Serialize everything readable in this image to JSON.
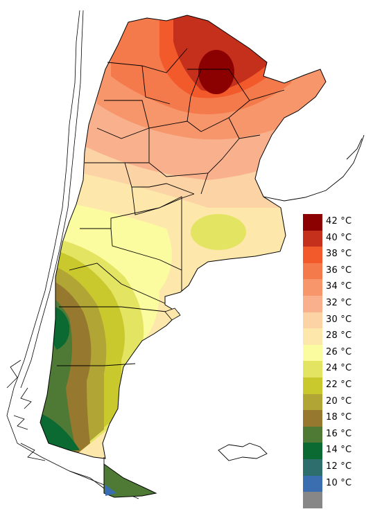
{
  "legend": {
    "items": [
      {
        "label": "42 °C",
        "color": "#8b0000"
      },
      {
        "label": "40 °C",
        "color": "#c4301c"
      },
      {
        "label": "38 °C",
        "color": "#f25a2b"
      },
      {
        "label": "36 °C",
        "color": "#f47a4c"
      },
      {
        "label": "34 °C",
        "color": "#f7966b"
      },
      {
        "label": "32 °C",
        "color": "#f9b18d"
      },
      {
        "label": "30 °C",
        "color": "#fcd3a5"
      },
      {
        "label": "28 °C",
        "color": "#fde7ab"
      },
      {
        "label": "26 °C",
        "color": "#fbfba0"
      },
      {
        "label": "24 °C",
        "color": "#e4e463"
      },
      {
        "label": "22 °C",
        "color": "#c9c92e"
      },
      {
        "label": "20 °C",
        "color": "#b0a535"
      },
      {
        "label": "18 °C",
        "color": "#96782e"
      },
      {
        "label": "16 °C",
        "color": "#4e7a36"
      },
      {
        "label": "14 °C",
        "color": "#0a6a32"
      },
      {
        "label": "12 °C",
        "color": "#2e6e6c"
      },
      {
        "label": "10 °C",
        "color": "#3a6eb0"
      },
      {
        "label": "",
        "color": "#878787"
      }
    ]
  }
}
